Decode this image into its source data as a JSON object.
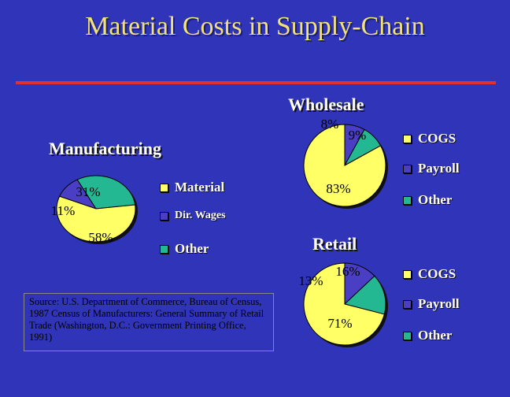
{
  "title": "Material Costs in Supply-Chain",
  "colors": {
    "background": "#2f34b8",
    "title": "#f2e27a",
    "rule": "#e03030",
    "slice_primary": "#ffff66",
    "slice_secondary": "#4a3fc4",
    "slice_other": "#24b892"
  },
  "source_note": "Source: U.S. Department of Commerce, Bureau of Census, 1987 Census of Manufacturers: General Summary of Retail Trade (Washington, D.C.: Government Printing Office, 1991)",
  "chart_data": [
    {
      "type": "pie",
      "title": "Manufacturing",
      "categories": [
        "Material",
        "Dir. Wages",
        "Other"
      ],
      "values": [
        58,
        11,
        31
      ],
      "labels": [
        "58%",
        "11%",
        "31%"
      ],
      "legend": "right"
    },
    {
      "type": "pie",
      "title": "Wholesale",
      "categories": [
        "COGS",
        "Payroll",
        "Other"
      ],
      "values": [
        83,
        8,
        9
      ],
      "labels": [
        "83%",
        "8%",
        "9%"
      ],
      "legend": "right"
    },
    {
      "type": "pie",
      "title": "Retail",
      "categories": [
        "COGS",
        "Payroll",
        "Other"
      ],
      "values": [
        71,
        13,
        16
      ],
      "labels": [
        "71%",
        "13%",
        "16%"
      ],
      "legend": "right"
    }
  ]
}
